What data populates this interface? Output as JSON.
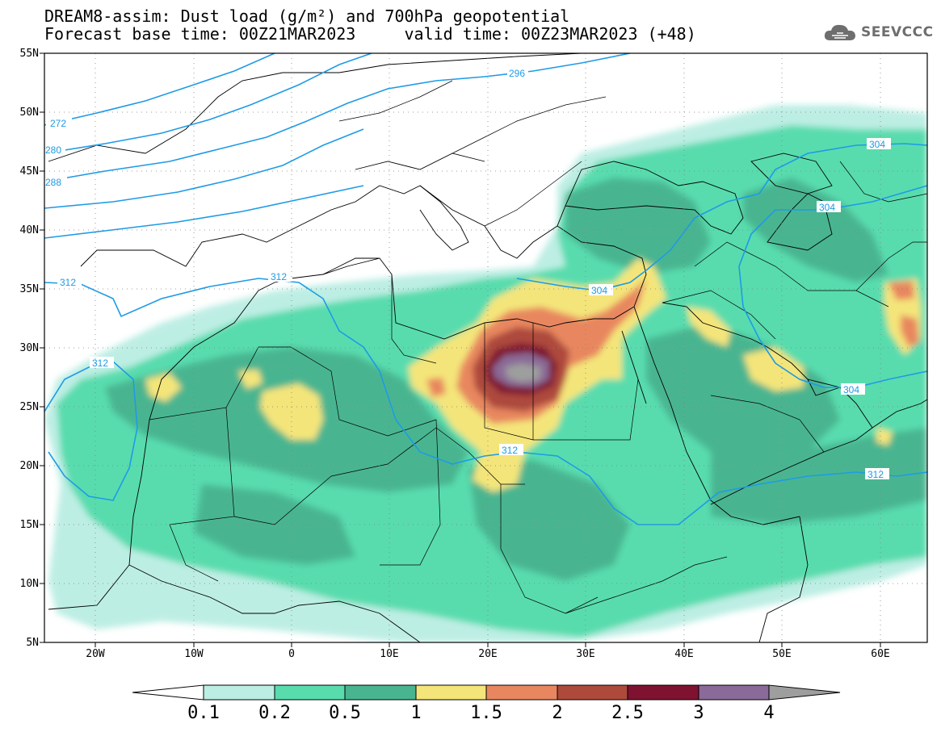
{
  "title": {
    "line1": "DREAM8-assim: Dust load (g/m²) and 700hPa geopotential",
    "line2": "Forecast base time: 00Z21MAR2023     valid time: 00Z23MAR2023 (+48)"
  },
  "logo": {
    "icon": "cloud-icon",
    "text": "SEEVCCC"
  },
  "map": {
    "lat_range": [
      5,
      55
    ],
    "lon_range": [
      -25,
      65
    ],
    "y_ticks": [
      "55N",
      "50N",
      "45N",
      "40N",
      "35N",
      "30N",
      "25N",
      "20N",
      "15N",
      "10N",
      "5N"
    ],
    "x_ticks": [
      "20W",
      "10W",
      "0",
      "10E",
      "20E",
      "30E",
      "40E",
      "50E",
      "60E"
    ],
    "contour_labels": [
      "296",
      "272",
      "280",
      "288",
      "304",
      "304",
      "312",
      "304",
      "312",
      "312",
      "304",
      "312",
      "312"
    ]
  },
  "colorbar": {
    "labels": [
      "0.1",
      "0.2",
      "0.5",
      "1",
      "1.5",
      "2",
      "2.5",
      "3",
      "4"
    ],
    "colors": [
      "#bdeee4",
      "#58dcae",
      "#48b590",
      "#f4e57a",
      "#e8875f",
      "#ad4a3c",
      "#7e1230",
      "#8a6a98",
      "#9e9e9e"
    ]
  }
}
